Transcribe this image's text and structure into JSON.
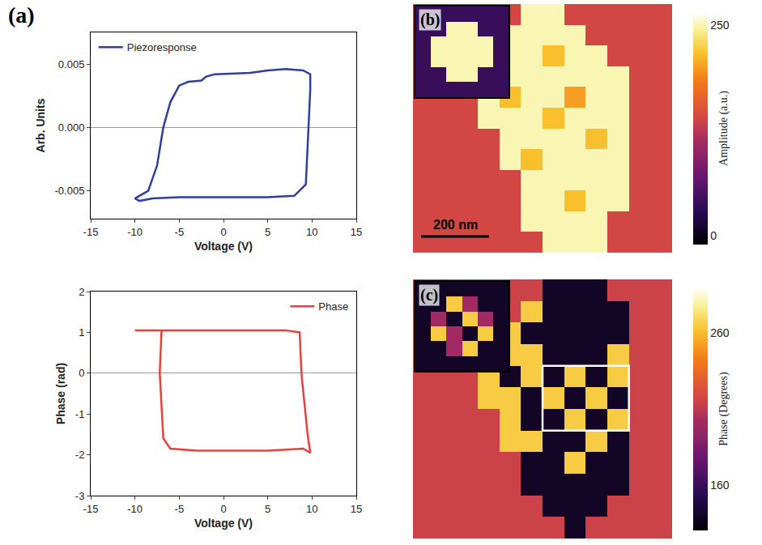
{
  "chart_data": [
    {
      "type": "line",
      "label": "(a)",
      "x_label": "Voltage (V)",
      "y_label": "Arb. Units",
      "grid": false,
      "legend": "top left",
      "xlim": [
        -15,
        15
      ],
      "xticks": [
        -15,
        -10,
        -5,
        0,
        5,
        10,
        15
      ],
      "ylim": [
        -0.0072,
        0.0075
      ],
      "yticks": [
        {
          "value": -0.005,
          "label": "-0.005"
        },
        {
          "value": 0,
          "label": "0.000"
        },
        {
          "value": 0.005,
          "label": "0.005"
        }
      ],
      "series": [
        {
          "name": "Piezoresponse",
          "color": "#2e3f9e",
          "x": [
            0,
            5,
            8,
            9.3,
            9.6,
            9.8,
            9.8,
            9,
            7,
            5,
            3,
            0,
            -1,
            -2,
            -2.5,
            -4,
            -5,
            -6,
            -6.8,
            -7.5,
            -8.5,
            -9.5,
            -10,
            -9.5,
            -8,
            -5,
            0
          ],
          "values": [
            -0.0055,
            -0.0055,
            -0.0054,
            -0.0045,
            0,
            0.003,
            0.0042,
            0.0045,
            0.0046,
            0.0045,
            0.0043,
            0.0042,
            0.0042,
            0.004,
            0.0037,
            0.0036,
            0.0033,
            0.002,
            0,
            -0.003,
            -0.005,
            -0.0054,
            -0.0056,
            -0.0058,
            -0.0056,
            -0.0055,
            -0.0055
          ]
        }
      ]
    },
    {
      "type": "line",
      "x_label": "Voltage (V)",
      "y_label": "Phase (rad)",
      "grid": false,
      "legend": "top right",
      "xlim": [
        -15,
        15
      ],
      "xticks": [
        -15,
        -10,
        -5,
        0,
        5,
        10,
        15
      ],
      "ylim": [
        -3,
        2
      ],
      "yticks": [
        -3,
        -2,
        -1,
        0,
        1,
        2
      ],
      "series": [
        {
          "name": "Phase",
          "color": "#e8413c",
          "x": [
            -10,
            -7,
            -7.2,
            -6.8,
            -6,
            -3,
            0,
            5,
            9,
            9.8,
            9.5,
            9,
            8.8,
            8.6,
            7,
            3,
            0,
            -5,
            -10
          ],
          "values": [
            1.05,
            1.05,
            0,
            -1.6,
            -1.85,
            -1.9,
            -1.9,
            -1.9,
            -1.85,
            -1.95,
            -1.5,
            -0.5,
            0,
            1.0,
            1.05,
            1.05,
            1.05,
            1.05,
            1.05
          ]
        }
      ]
    },
    {
      "type": "heatmap",
      "label": "(b)",
      "colorbar_title": "Amplitude (a.u.)",
      "zlim": [
        -10,
        265
      ],
      "zticks": [
        0,
        250
      ],
      "annotations": [
        "200 nm"
      ],
      "z": [
        [
          140,
          140,
          140,
          140,
          140,
          250,
          250,
          140,
          140,
          140,
          140,
          140
        ],
        [
          140,
          140,
          140,
          140,
          250,
          250,
          250,
          250,
          140,
          140,
          140,
          140
        ],
        [
          140,
          140,
          140,
          140,
          250,
          250,
          215,
          250,
          250,
          140,
          140,
          140
        ],
        [
          140,
          140,
          140,
          250,
          250,
          250,
          250,
          250,
          250,
          250,
          140,
          140
        ],
        [
          140,
          140,
          140,
          250,
          215,
          250,
          250,
          200,
          250,
          250,
          140,
          140
        ],
        [
          140,
          140,
          140,
          250,
          250,
          250,
          215,
          250,
          250,
          250,
          140,
          140
        ],
        [
          140,
          140,
          140,
          140,
          250,
          250,
          250,
          250,
          215,
          250,
          140,
          140
        ],
        [
          140,
          140,
          140,
          140,
          250,
          215,
          250,
          250,
          250,
          250,
          140,
          140
        ],
        [
          140,
          140,
          140,
          140,
          140,
          250,
          250,
          250,
          250,
          250,
          140,
          140
        ],
        [
          140,
          140,
          140,
          140,
          140,
          250,
          250,
          215,
          250,
          250,
          140,
          140
        ],
        [
          140,
          140,
          140,
          140,
          140,
          250,
          250,
          250,
          250,
          140,
          140,
          140
        ],
        [
          140,
          140,
          140,
          140,
          140,
          140,
          250,
          250,
          250,
          140,
          140,
          140
        ]
      ],
      "inset_z": [
        [
          40,
          40,
          40,
          40,
          40,
          40
        ],
        [
          40,
          40,
          250,
          250,
          40,
          40
        ],
        [
          40,
          250,
          250,
          250,
          250,
          40
        ],
        [
          40,
          250,
          250,
          250,
          250,
          40
        ],
        [
          40,
          40,
          250,
          250,
          40,
          40
        ],
        [
          40,
          40,
          40,
          40,
          40,
          40
        ]
      ]
    },
    {
      "type": "heatmap",
      "label": "(c)",
      "colorbar_title": "Phase (Degrees)",
      "zlim": [
        130,
        290
      ],
      "zticks": [
        160,
        260
      ],
      "z": [
        [
          215,
          215,
          215,
          215,
          215,
          215,
          140,
          140,
          140,
          215,
          215,
          215
        ],
        [
          215,
          215,
          215,
          215,
          215,
          265,
          140,
          140,
          140,
          140,
          215,
          215
        ],
        [
          215,
          215,
          215,
          215,
          265,
          140,
          140,
          140,
          140,
          140,
          215,
          215
        ],
        [
          215,
          215,
          215,
          265,
          265,
          265,
          140,
          140,
          140,
          265,
          215,
          215
        ],
        [
          215,
          215,
          215,
          265,
          140,
          265,
          140,
          265,
          140,
          265,
          215,
          215
        ],
        [
          215,
          215,
          215,
          265,
          265,
          140,
          265,
          140,
          265,
          140,
          215,
          215
        ],
        [
          215,
          215,
          215,
          215,
          265,
          140,
          140,
          265,
          140,
          265,
          215,
          215
        ],
        [
          215,
          215,
          215,
          215,
          265,
          265,
          140,
          140,
          265,
          140,
          215,
          215
        ],
        [
          215,
          215,
          215,
          215,
          215,
          140,
          140,
          265,
          140,
          140,
          215,
          215
        ],
        [
          215,
          215,
          215,
          215,
          215,
          140,
          140,
          140,
          140,
          140,
          215,
          215
        ],
        [
          215,
          215,
          215,
          215,
          215,
          215,
          140,
          140,
          140,
          215,
          215,
          215
        ],
        [
          215,
          215,
          215,
          215,
          215,
          215,
          215,
          140,
          215,
          215,
          215,
          215
        ]
      ],
      "inset_z": [
        [
          140,
          140,
          140,
          140,
          140,
          140
        ],
        [
          140,
          140,
          265,
          200,
          140,
          140
        ],
        [
          140,
          200,
          140,
          265,
          200,
          140
        ],
        [
          140,
          265,
          200,
          140,
          265,
          140
        ],
        [
          140,
          140,
          200,
          265,
          140,
          140
        ],
        [
          140,
          140,
          140,
          140,
          140,
          140
        ]
      ]
    }
  ]
}
